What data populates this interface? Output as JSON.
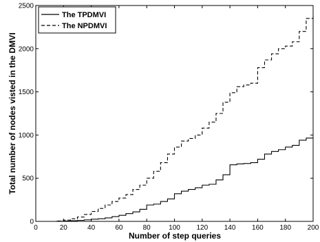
{
  "chart_data": {
    "type": "line",
    "title": "",
    "xlabel": "Number of step queries",
    "ylabel": "Total number of nodes visted in the DMVI",
    "xlim": [
      0,
      200
    ],
    "ylim": [
      0,
      2500
    ],
    "x_ticks": [
      0,
      20,
      40,
      60,
      80,
      100,
      120,
      140,
      160,
      180,
      200
    ],
    "y_ticks": [
      0,
      500,
      1000,
      1500,
      2000,
      2500
    ],
    "grid": false,
    "legend": "top-left",
    "series": [
      {
        "name": "The TPDMVI",
        "style": "solid",
        "color": "#000000",
        "points": [
          [
            0,
            0
          ],
          [
            10,
            0
          ],
          [
            15,
            2
          ],
          [
            20,
            5
          ],
          [
            25,
            8
          ],
          [
            30,
            12
          ],
          [
            35,
            18
          ],
          [
            40,
            25
          ],
          [
            45,
            30
          ],
          [
            50,
            40
          ],
          [
            55,
            55
          ],
          [
            60,
            70
          ],
          [
            65,
            90
          ],
          [
            70,
            110
          ],
          [
            75,
            140
          ],
          [
            80,
            190
          ],
          [
            85,
            200
          ],
          [
            90,
            230
          ],
          [
            95,
            260
          ],
          [
            100,
            320
          ],
          [
            105,
            350
          ],
          [
            110,
            370
          ],
          [
            115,
            390
          ],
          [
            120,
            420
          ],
          [
            125,
            430
          ],
          [
            130,
            480
          ],
          [
            135,
            540
          ],
          [
            140,
            655
          ],
          [
            145,
            665
          ],
          [
            150,
            670
          ],
          [
            155,
            680
          ],
          [
            160,
            720
          ],
          [
            165,
            780
          ],
          [
            170,
            810
          ],
          [
            175,
            830
          ],
          [
            180,
            860
          ],
          [
            185,
            880
          ],
          [
            190,
            940
          ],
          [
            195,
            965
          ],
          [
            200,
            970
          ]
        ]
      },
      {
        "name": "The NPDMVI",
        "style": "dashed",
        "color": "#000000",
        "points": [
          [
            0,
            0
          ],
          [
            10,
            0
          ],
          [
            15,
            5
          ],
          [
            20,
            15
          ],
          [
            25,
            30
          ],
          [
            30,
            50
          ],
          [
            35,
            80
          ],
          [
            40,
            115
          ],
          [
            45,
            150
          ],
          [
            50,
            190
          ],
          [
            55,
            230
          ],
          [
            60,
            270
          ],
          [
            65,
            310
          ],
          [
            70,
            370
          ],
          [
            75,
            420
          ],
          [
            80,
            500
          ],
          [
            85,
            580
          ],
          [
            90,
            680
          ],
          [
            95,
            780
          ],
          [
            100,
            860
          ],
          [
            105,
            930
          ],
          [
            110,
            960
          ],
          [
            115,
            1000
          ],
          [
            120,
            1080
          ],
          [
            125,
            1150
          ],
          [
            130,
            1250
          ],
          [
            135,
            1380
          ],
          [
            140,
            1490
          ],
          [
            145,
            1560
          ],
          [
            150,
            1580
          ],
          [
            155,
            1600
          ],
          [
            160,
            1780
          ],
          [
            165,
            1870
          ],
          [
            170,
            1940
          ],
          [
            175,
            2000
          ],
          [
            180,
            2030
          ],
          [
            185,
            2080
          ],
          [
            190,
            2200
          ],
          [
            195,
            2350
          ],
          [
            200,
            2390
          ]
        ]
      }
    ]
  }
}
